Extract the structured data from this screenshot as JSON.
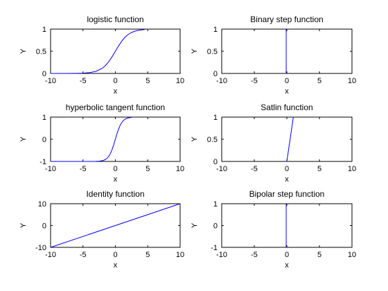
{
  "figure": {
    "background": "#ffffff"
  },
  "chart_data": [
    {
      "type": "line",
      "title": "logistic function",
      "xlabel": "x",
      "ylabel": "Y",
      "xlim": [
        -10,
        10
      ],
      "ylim": [
        0,
        1
      ],
      "xticks": [
        -10,
        -5,
        0,
        5,
        10
      ],
      "yticks": [
        0,
        0.5,
        1
      ],
      "series": [
        {
          "color": "#0000ff",
          "x": [
            -10,
            -8,
            -6,
            -5,
            -4,
            -3,
            -2,
            -1.5,
            -1,
            -0.5,
            0,
            0.5,
            1,
            1.5,
            2,
            2.5,
            3,
            3.5,
            4,
            4.5
          ],
          "y": [
            0,
            0.0003,
            0.0025,
            0.0067,
            0.018,
            0.047,
            0.119,
            0.182,
            0.269,
            0.378,
            0.5,
            0.622,
            0.731,
            0.818,
            0.881,
            0.924,
            0.953,
            0.971,
            0.982,
            0.989
          ]
        }
      ]
    },
    {
      "type": "line",
      "title": "Binary step function",
      "xlabel": "x",
      "ylabel": "Y",
      "xlim": [
        -10,
        10
      ],
      "ylim": [
        0,
        1
      ],
      "xticks": [
        -10,
        -5,
        0,
        5,
        10
      ],
      "yticks": [
        0,
        0.5,
        1
      ],
      "series": [
        {
          "color": "#0000ff",
          "x": [
            0,
            -0.1,
            -0.1
          ],
          "y": [
            0,
            0,
            1
          ]
        }
      ]
    },
    {
      "type": "line",
      "title": "hyperbolic tangent function",
      "xlabel": "x",
      "ylabel": "Y",
      "xlim": [
        -10,
        10
      ],
      "ylim": [
        -1,
        1
      ],
      "xticks": [
        -10,
        -5,
        0,
        5,
        10
      ],
      "yticks": [
        -1,
        0,
        1
      ],
      "series": [
        {
          "color": "#0000ff",
          "x": [
            -10,
            -5,
            -4,
            -3,
            -2.5,
            -2,
            -1.75,
            -1.5,
            -1.25,
            -1,
            -0.75,
            -0.5,
            -0.25,
            0,
            0.25,
            0.5,
            0.75,
            1,
            1.25,
            1.5,
            1.75,
            2,
            2.5
          ],
          "y": [
            -1,
            -0.9999,
            -0.9993,
            -0.995,
            -0.987,
            -0.964,
            -0.941,
            -0.905,
            -0.848,
            -0.762,
            -0.635,
            -0.462,
            -0.245,
            0,
            0.245,
            0.462,
            0.635,
            0.762,
            0.848,
            0.905,
            0.941,
            0.964,
            0.987
          ]
        }
      ]
    },
    {
      "type": "line",
      "title": "Satlin function",
      "xlabel": "x",
      "ylabel": "Y",
      "xlim": [
        -10,
        10
      ],
      "ylim": [
        0,
        1
      ],
      "xticks": [
        -10,
        -5,
        0,
        5,
        10
      ],
      "yticks": [
        0,
        0.5,
        1
      ],
      "series": [
        {
          "color": "#0000ff",
          "x": [
            0,
            1
          ],
          "y": [
            0,
            1
          ]
        }
      ]
    },
    {
      "type": "line",
      "title": "Identity function",
      "xlabel": "x",
      "ylabel": "Y",
      "xlim": [
        -10,
        10
      ],
      "ylim": [
        -10,
        10
      ],
      "xticks": [
        -10,
        -5,
        0,
        5,
        10
      ],
      "yticks": [
        -10,
        0,
        10
      ],
      "series": [
        {
          "color": "#0000ff",
          "x": [
            -10,
            10
          ],
          "y": [
            -10,
            10
          ]
        }
      ]
    },
    {
      "type": "line",
      "title": "Bipolar step function",
      "xlabel": "x",
      "ylabel": "Y",
      "xlim": [
        -10,
        10
      ],
      "ylim": [
        -1,
        1
      ],
      "xticks": [
        -10,
        -5,
        0,
        5,
        10
      ],
      "yticks": [
        -1,
        0,
        1
      ],
      "series": [
        {
          "color": "#0000ff",
          "x": [
            0,
            -0.1,
            -0.1
          ],
          "y": [
            -1,
            -1,
            1
          ]
        }
      ]
    }
  ]
}
